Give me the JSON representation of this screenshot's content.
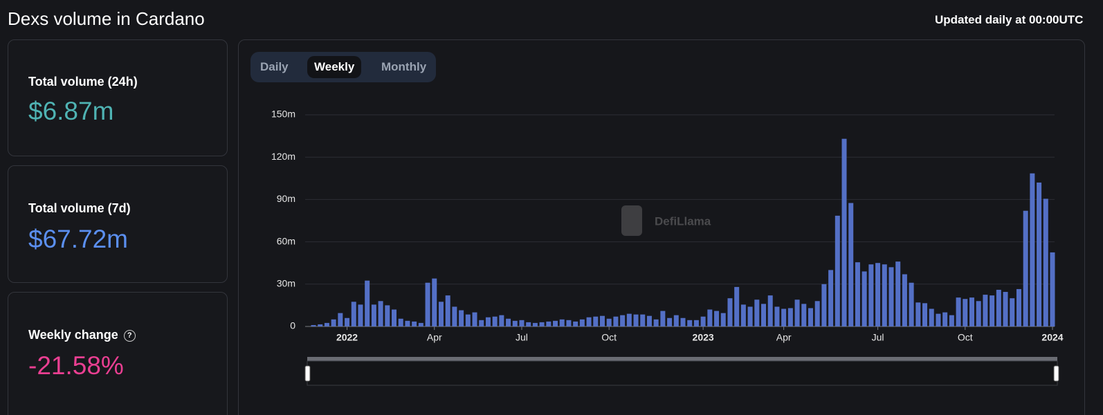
{
  "header": {
    "title": "Dexs volume in Cardano",
    "updated": "Updated daily at 00:00UTC"
  },
  "stats": [
    {
      "label": "Total volume (24h)",
      "value": "$6.87m",
      "color": "#4fb3b3"
    },
    {
      "label": "Total volume (7d)",
      "value": "$67.72m",
      "color": "#5b8ff0"
    },
    {
      "label": "Weekly change",
      "value": "-21.58%",
      "color": "#ea3f92"
    }
  ],
  "tabs": [
    "Daily",
    "Weekly",
    "Monthly"
  ],
  "watermark": "DefiLlama",
  "chart_data": {
    "type": "bar",
    "color": "#5470c6",
    "grid": true,
    "categories": [
      null,
      null,
      null,
      null,
      null,
      "2022",
      null,
      null,
      null,
      null,
      null,
      null,
      null,
      null,
      null,
      null,
      null,
      null,
      "Apr",
      null,
      null,
      null,
      null,
      null,
      null,
      null,
      null,
      null,
      null,
      null,
      null,
      "Jul",
      null,
      null,
      null,
      null,
      null,
      null,
      null,
      null,
      null,
      null,
      null,
      null,
      "Oct",
      null,
      null,
      null,
      null,
      null,
      null,
      null,
      null,
      null,
      null,
      null,
      null,
      null,
      "2023",
      null,
      null,
      null,
      null,
      null,
      null,
      null,
      null,
      null,
      null,
      null,
      "Apr",
      null,
      null,
      null,
      null,
      null,
      null,
      null,
      null,
      null,
      null,
      null,
      null,
      null,
      "Jul",
      null,
      null,
      null,
      null,
      null,
      null,
      null,
      null,
      null,
      null,
      null,
      null,
      "Oct",
      null,
      null,
      null,
      null,
      null,
      null,
      null,
      null,
      null,
      null,
      null,
      null,
      "2024"
    ],
    "values": [
      1,
      1.5,
      2.5,
      5,
      9.5,
      6,
      17.5,
      15.5,
      32.5,
      15.5,
      18,
      15,
      12,
      5.5,
      4,
      3.5,
      2.5,
      31,
      34,
      17.5,
      22,
      14,
      11.5,
      8.5,
      10,
      4.5,
      6.5,
      7,
      8,
      5.5,
      4,
      4.5,
      3,
      2.5,
      3,
      3.5,
      4,
      5,
      4.5,
      3.5,
      5,
      6.5,
      7,
      7.5,
      5.5,
      7,
      8,
      9,
      8.5,
      8.5,
      7.5,
      5,
      11,
      6,
      8,
      6,
      4.5,
      4.5,
      7,
      12,
      11,
      9.5,
      20,
      28,
      15.5,
      14,
      19,
      16,
      22,
      14,
      12.5,
      13,
      19,
      16,
      13,
      18,
      30,
      40,
      78.5,
      133,
      87.5,
      45.5,
      39,
      44,
      45,
      44,
      42,
      46,
      37,
      31,
      17,
      16.5,
      12.5,
      9,
      10,
      8,
      20.5,
      19.5,
      20.5,
      18,
      22.5,
      22,
      26,
      24.5,
      20,
      26.5,
      82,
      108.5,
      102,
      90.5,
      52.5
    ],
    "ylim": [
      0,
      150
    ],
    "yticks": [
      0,
      {
        "value": 30,
        "label": "30m"
      },
      {
        "value": 60,
        "label": "60m"
      },
      {
        "value": 90,
        "label": "90m"
      },
      {
        "value": 120,
        "label": "120m"
      },
      {
        "value": 150,
        "label": "150m"
      }
    ]
  }
}
